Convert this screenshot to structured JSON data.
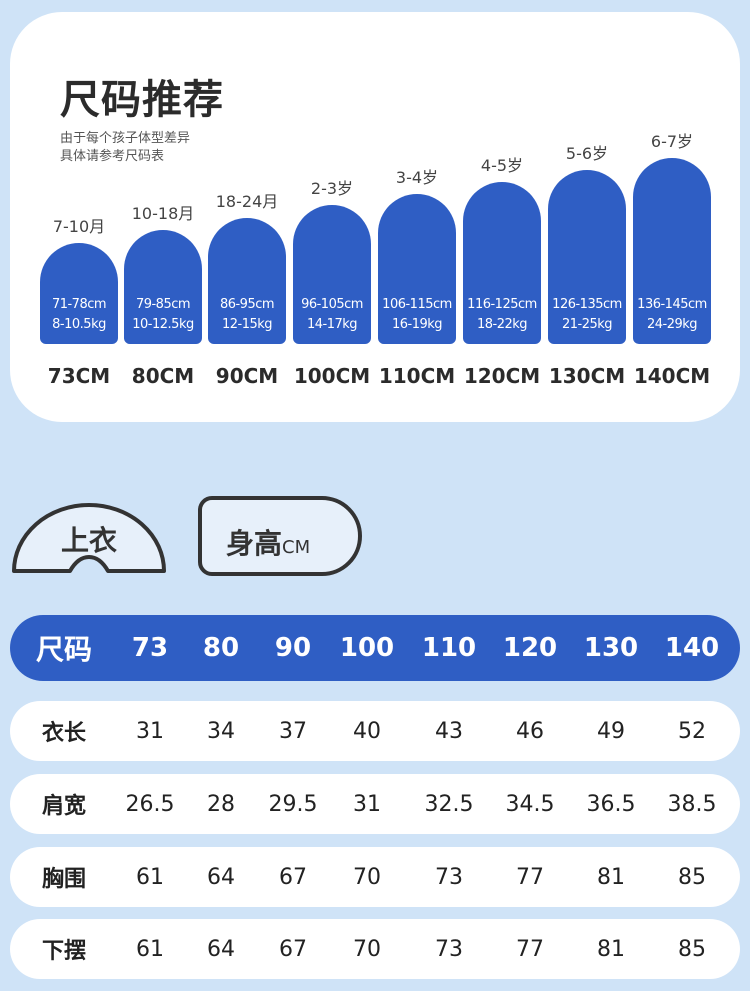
{
  "title": "尺码推荐",
  "subtitle_lines": [
    "由于每个孩子体型差异",
    "具体请参考尺码表"
  ],
  "sizes": [
    {
      "age": "7-10月",
      "height": "71-78cm",
      "weight": "8-10.5kg",
      "size": "73CM"
    },
    {
      "age": "10-18月",
      "height": "79-85cm",
      "weight": "10-12.5kg",
      "size": "80CM"
    },
    {
      "age": "18-24月",
      "height": "86-95cm",
      "weight": "12-15kg",
      "size": "90CM"
    },
    {
      "age": "2-3岁",
      "height": "96-105cm",
      "weight": "14-17kg",
      "size": "100CM"
    },
    {
      "age": "3-4岁",
      "height": "106-115cm",
      "weight": "16-19kg",
      "size": "110CM"
    },
    {
      "age": "4-5岁",
      "height": "116-125cm",
      "weight": "18-22kg",
      "size": "120CM"
    },
    {
      "age": "5-6岁",
      "height": "126-135cm",
      "weight": "21-25kg",
      "size": "130CM"
    },
    {
      "age": "6-7岁",
      "height": "136-145cm",
      "weight": "24-29kg",
      "size": "140CM"
    }
  ],
  "tabs": {
    "top_label": "上衣",
    "height_label": "身高",
    "height_unit": "CM"
  },
  "table": {
    "header_label": "尺码",
    "columns": [
      "73",
      "80",
      "90",
      "100",
      "110",
      "120",
      "130",
      "140"
    ],
    "rows": [
      {
        "label": "衣长",
        "values": [
          "31",
          "34",
          "37",
          "40",
          "43",
          "46",
          "49",
          "52"
        ]
      },
      {
        "label": "肩宽",
        "values": [
          "26.5",
          "28",
          "29.5",
          "31",
          "32.5",
          "34.5",
          "36.5",
          "38.5"
        ]
      },
      {
        "label": "胸围",
        "values": [
          "61",
          "64",
          "67",
          "70",
          "73",
          "77",
          "81",
          "85"
        ]
      },
      {
        "label": "下摆",
        "values": [
          "61",
          "64",
          "67",
          "70",
          "73",
          "77",
          "81",
          "85"
        ]
      }
    ]
  },
  "colors": {
    "accent": "#2f5ec4",
    "background": "#cfe3f7",
    "card": "#ffffff"
  }
}
